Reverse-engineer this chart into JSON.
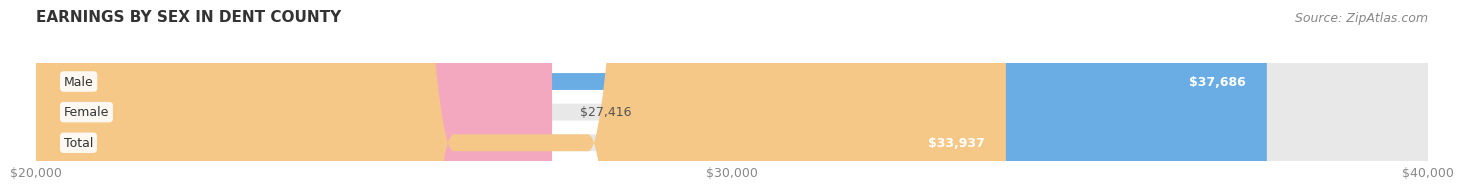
{
  "title": "EARNINGS BY SEX IN DENT COUNTY",
  "source": "Source: ZipAtlas.com",
  "categories": [
    "Male",
    "Female",
    "Total"
  ],
  "values": [
    37686,
    27416,
    33937
  ],
  "bar_colors": [
    "#6aade4",
    "#f4a8c0",
    "#f5c888"
  ],
  "bar_bg_color": "#e8e8e8",
  "label_colors": [
    "#ffffff",
    "#555555",
    "#ffffff"
  ],
  "xmin": 20000,
  "xmax": 40000,
  "xticks": [
    20000,
    30000,
    40000
  ],
  "xtick_labels": [
    "$20,000",
    "$30,000",
    "$40,000"
  ],
  "value_labels": [
    "$37,686",
    "$27,416",
    "$33,937"
  ],
  "title_fontsize": 11,
  "source_fontsize": 9,
  "tick_fontsize": 9,
  "bar_label_fontsize": 9,
  "category_fontsize": 9,
  "background_color": "#ffffff",
  "bar_height": 0.55
}
